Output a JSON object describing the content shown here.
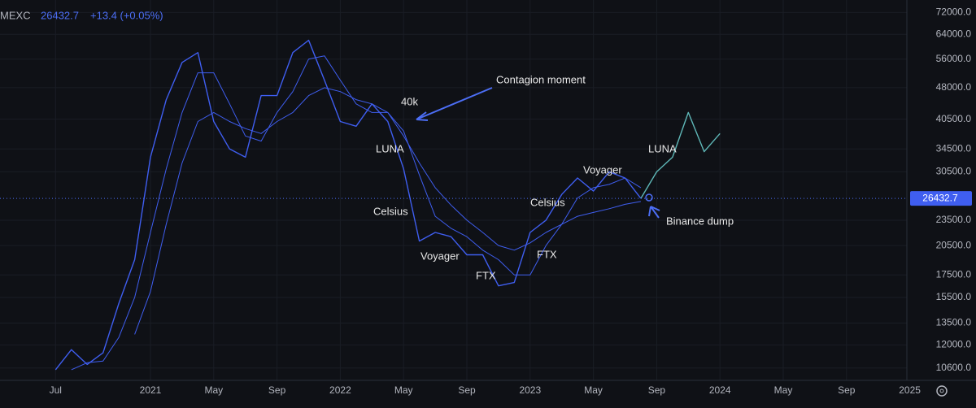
{
  "chart_data": {
    "type": "line",
    "header": {
      "symbol": "MEXC",
      "price": "26432.7",
      "change": "+13.4 (+0.05%)"
    },
    "log_scale": true,
    "grid": true,
    "x": [
      "2020-07",
      "2020-08",
      "2020-09",
      "2020-10",
      "2020-11",
      "2020-12",
      "2021-01",
      "2021-02",
      "2021-03",
      "2021-04",
      "2021-05",
      "2021-06",
      "2021-07",
      "2021-08",
      "2021-09",
      "2021-10",
      "2021-11",
      "2021-12",
      "2022-01",
      "2022-02",
      "2022-03",
      "2022-04",
      "2022-05",
      "2022-06",
      "2022-07",
      "2022-08",
      "2022-09",
      "2022-10",
      "2022-11",
      "2022-12",
      "2023-01",
      "2023-02",
      "2023-03",
      "2023-04",
      "2023-05",
      "2023-06",
      "2023-07",
      "2023-08",
      "2023-09",
      "2023-10",
      "2023-11",
      "2023-12",
      "2024-01"
    ],
    "series": [
      {
        "color": "#3f5ef0",
        "width": 1.4,
        "values": [
          10500,
          11700,
          10800,
          11500,
          15000,
          19000,
          33000,
          45000,
          55000,
          58000,
          40000,
          34500,
          33000,
          46000,
          46000,
          58000,
          62000,
          50000,
          40000,
          39000,
          44000,
          40000,
          31000,
          21000,
          22000,
          21500,
          19500,
          19500,
          16500,
          16800,
          22000,
          23500,
          27000,
          29500,
          27500,
          30500,
          29500,
          26432.7,
          null,
          null,
          null,
          null,
          null
        ]
      },
      {
        "color": "#3f5ef0",
        "width": 1,
        "values": [
          null,
          10500,
          10900,
          11000,
          12500,
          15500,
          22000,
          31000,
          42000,
          52000,
          52000,
          44000,
          37000,
          36000,
          42000,
          47000,
          56000,
          57000,
          50000,
          44000,
          42000,
          42000,
          38000,
          30000,
          24000,
          22500,
          21500,
          20000,
          19000,
          17500,
          17500,
          20500,
          23000,
          26500,
          28000,
          28500,
          29500,
          28000,
          null,
          null,
          null,
          null,
          null
        ]
      },
      {
        "color": "#3f5ef0",
        "width": 1,
        "values": [
          null,
          null,
          null,
          null,
          null,
          12700,
          16000,
          23000,
          32000,
          40000,
          42000,
          40000,
          38500,
          37500,
          40000,
          42000,
          46000,
          48000,
          47000,
          45000,
          44000,
          42000,
          37000,
          32000,
          28000,
          25500,
          23500,
          22000,
          20500,
          20000,
          20800,
          22000,
          23000,
          24000,
          24500,
          25000,
          25600,
          26000,
          null,
          null,
          null,
          null,
          null
        ]
      },
      {
        "color": "#5fb8b8",
        "width": 1.4,
        "values": [
          null,
          null,
          null,
          null,
          null,
          null,
          null,
          null,
          null,
          null,
          null,
          null,
          null,
          null,
          null,
          null,
          null,
          null,
          null,
          null,
          null,
          null,
          null,
          null,
          null,
          null,
          null,
          null,
          null,
          null,
          null,
          null,
          null,
          null,
          null,
          null,
          null,
          26432.7,
          30500,
          33000,
          42000,
          34000,
          37500
        ]
      }
    ],
    "last_price": 26432.7,
    "ylim": [
      10000,
      77000
    ],
    "yticks": [
      {
        "value": 72000,
        "label": "72000.0"
      },
      {
        "value": 64000,
        "label": "64000.0"
      },
      {
        "value": 56000,
        "label": "56000.0"
      },
      {
        "value": 48000,
        "label": "48000.0"
      },
      {
        "value": 40500,
        "label": "40500.0"
      },
      {
        "value": 34500,
        "label": "34500.0"
      },
      {
        "value": 30500,
        "label": "30500.0"
      },
      {
        "value": 23500,
        "label": "23500.0"
      },
      {
        "value": 20500,
        "label": "20500.0"
      },
      {
        "value": 17500,
        "label": "17500.0"
      },
      {
        "value": 15500,
        "label": "15500.0"
      },
      {
        "value": 13500,
        "label": "13500.0"
      },
      {
        "value": 12000,
        "label": "12000.0"
      },
      {
        "value": 10600,
        "label": "10600.0"
      }
    ],
    "xticks": [
      {
        "value": "2020-07",
        "label": "Jul"
      },
      {
        "value": "2021-01",
        "label": "2021"
      },
      {
        "value": "2021-05",
        "label": "May"
      },
      {
        "value": "2021-09",
        "label": "Sep"
      },
      {
        "value": "2022-01",
        "label": "2022"
      },
      {
        "value": "2022-05",
        "label": "May"
      },
      {
        "value": "2022-09",
        "label": "Sep"
      },
      {
        "value": "2023-01",
        "label": "2023"
      },
      {
        "value": "2023-05",
        "label": "May"
      },
      {
        "value": "2023-09",
        "label": "Sep"
      },
      {
        "value": "2024-01",
        "label": "2024"
      },
      {
        "value": "2024-05",
        "label": "May"
      },
      {
        "value": "2024-09",
        "label": "Sep"
      },
      {
        "value": "2025-01",
        "label": "2025"
      }
    ],
    "annotations": [
      "Contagion moment",
      "40k",
      "LUNA",
      "Celsius",
      "Voyager",
      "FTX",
      "Celsius",
      "FTX",
      "Voyager",
      "LUNA",
      "Binance dump"
    ]
  }
}
